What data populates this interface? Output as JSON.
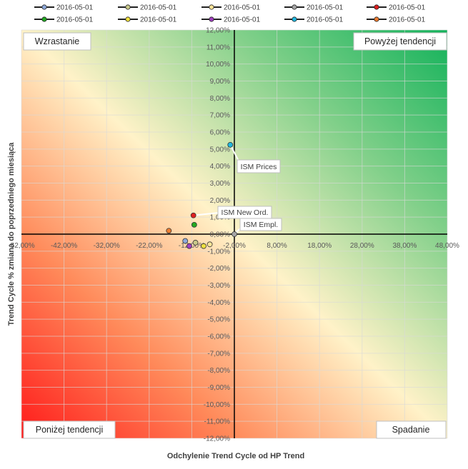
{
  "chart_data": {
    "type": "scatter",
    "xlabel": "Odchylenie Trend Cycle od HP Trend",
    "ylabel": "Trend Cycle % zmiana do poprzedniego miesiąca",
    "xlim": [
      -52,
      52
    ],
    "ylim": [
      -12,
      12
    ],
    "x_ticks": [
      "-52,00%",
      "-42,00%",
      "-32,00%",
      "-22,00%",
      "-12,00%",
      "-2,00%",
      "8,00%",
      "18,00%",
      "28,00%",
      "38,00%",
      "48,00%"
    ],
    "y_ticks": [
      "12,00%",
      "11,00%",
      "10,00%",
      "9,00%",
      "8,00%",
      "7,00%",
      "6,00%",
      "5,00%",
      "4,00%",
      "3,00%",
      "2,00%",
      "1,00%",
      "0,00%",
      "-1,00%",
      "-2,00%",
      "-3,00%",
      "-4,00%",
      "-5,00%",
      "-6,00%",
      "-7,00%",
      "-8,00%",
      "-9,00%",
      "-10,00%",
      "-11,00%",
      "-12,00%"
    ],
    "grid": true,
    "legend_position": "top",
    "quadrants": {
      "top_left": "Wzrastanie",
      "top_right": "Powyżej tendencji",
      "bottom_left": "Poniżej tendencji",
      "bottom_right": "Spadanie"
    },
    "series": [
      {
        "name": "2016-05-01",
        "x": -12.0,
        "y": -0.4,
        "color": "#8ea9db"
      },
      {
        "name": "2016-05-01",
        "x": -9.5,
        "y": -0.5,
        "color": "#c9c98a"
      },
      {
        "name": "2016-05-01",
        "x": -6.0,
        "y": -0.6,
        "color": "#ffe699"
      },
      {
        "name": "2016-05-01",
        "x": 0.0,
        "y": 0.0,
        "color": "#a6a6a6"
      },
      {
        "name": "2016-05-01",
        "x": -10.0,
        "y": 1.1,
        "color": "#e02020"
      },
      {
        "name": "2016-05-01",
        "x": -9.8,
        "y": 0.55,
        "color": "#22aa22"
      },
      {
        "name": "2016-05-01",
        "x": -7.5,
        "y": -0.7,
        "color": "#f0e040"
      },
      {
        "name": "2016-05-01",
        "x": -11.0,
        "y": -0.7,
        "color": "#a040c0"
      },
      {
        "name": "2016-05-01",
        "x": -1.0,
        "y": 5.25,
        "color": "#20b8e0"
      },
      {
        "name": "2016-05-01",
        "x": -16.0,
        "y": 0.2,
        "color": "#ed7d31"
      }
    ],
    "legend_markers": [
      "#8ea9db",
      "#c9c98a",
      "#ffe699",
      "#a6a6a6",
      "#e02020",
      "#22aa22",
      "#f0e040",
      "#a040c0",
      "#20b8e0",
      "#ed7d31"
    ],
    "callouts": [
      {
        "label": "ISM Prices",
        "point": 8
      },
      {
        "label": "ISM New Ord.",
        "point": 4
      },
      {
        "label": "ISM Empl.",
        "point": 3
      }
    ]
  }
}
